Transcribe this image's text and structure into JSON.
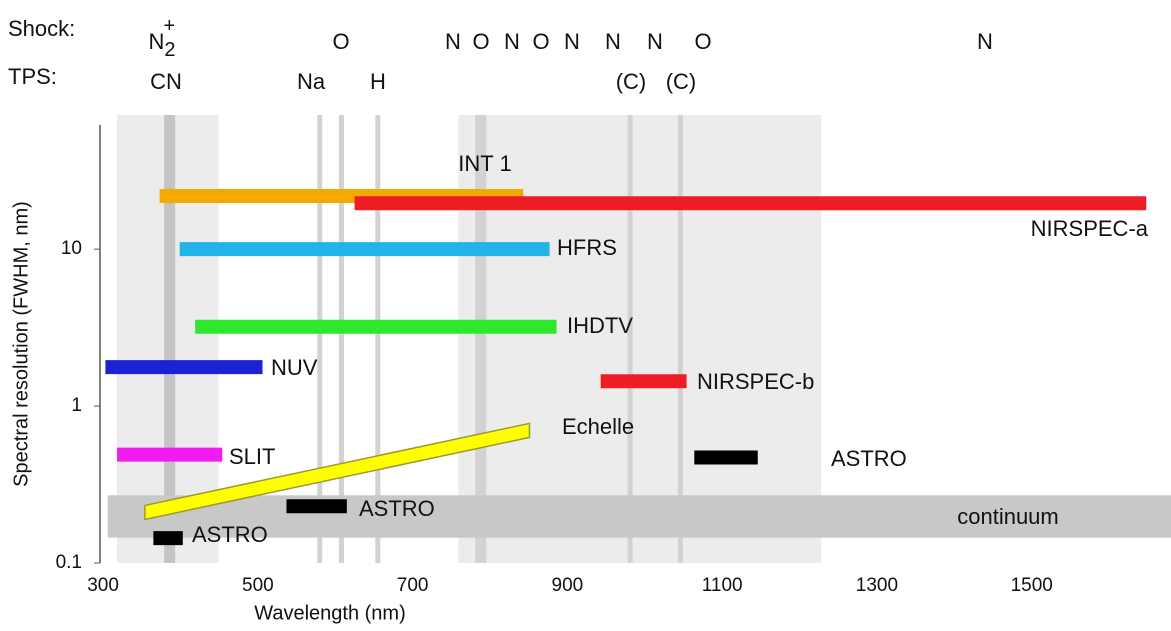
{
  "chart_data": {
    "type": "range",
    "x_label": "Wavelength (nm)",
    "y_label": "Spectral resolution (FWHM, nm)",
    "xlim": [
      296,
      1680
    ],
    "ylim": [
      0.1,
      60
    ],
    "y_log": true,
    "xticks": [
      300,
      500,
      700,
      900,
      1100,
      1300,
      1500
    ],
    "yticks": [
      0.1,
      1,
      10
    ],
    "row_titles": {
      "shock": "Shock:",
      "tps": "TPS:"
    },
    "shock_labels": [
      {
        "base": "N",
        "sub": "2",
        "sup": "+"
      },
      "O",
      "N",
      "O",
      "N",
      "O",
      "N",
      "N",
      "N",
      "O",
      "N"
    ],
    "tps_labels": [
      "CN",
      "Na",
      "H",
      "(C)",
      "(C)"
    ],
    "shaded_regions": [
      [
        318,
        449
      ],
      [
        759,
        1228
      ]
    ],
    "lines": [
      386,
      580,
      608,
      655,
      788,
      981,
      1046
    ],
    "continuum": {
      "name": "continuum",
      "color": "#c8c8c8",
      "x": [
        306,
        1680
      ],
      "values": [
        0.145,
        0.27
      ]
    },
    "series": [
      {
        "name": "INT 1",
        "color": "#f5a800",
        "x": [
          373,
          843
        ],
        "values": [
          21.8,
          21.8
        ]
      },
      {
        "name": "NIRSPEC-a",
        "color": "#ee1c24",
        "x": [
          625,
          1648
        ],
        "values": [
          19.6,
          19.6
        ]
      },
      {
        "name": "HFRS",
        "color": "#22b4e8",
        "x": [
          399,
          877
        ],
        "values": [
          10,
          10
        ]
      },
      {
        "name": "IHDTV",
        "color": "#2ee82e",
        "x": [
          419,
          886
        ],
        "values": [
          3.2,
          3.2
        ]
      },
      {
        "name": "NUV",
        "color": "#1a22d6",
        "x": [
          303,
          506
        ],
        "values": [
          1.77,
          1.77
        ]
      },
      {
        "name": "NIRSPEC-b",
        "color": "#ee1c24",
        "x": [
          943,
          1054
        ],
        "values": [
          1.44,
          1.44
        ]
      },
      {
        "name": "SLIT",
        "color": "#f01cf0",
        "x": [
          318,
          454
        ],
        "values": [
          0.49,
          0.49
        ]
      },
      {
        "name": "Echelle",
        "color": "#ffff00",
        "x": [
          354,
          851
        ],
        "values": [
          0.21,
          0.7
        ]
      },
      {
        "name": "ASTRO",
        "color": "#000000",
        "x": [
          1064,
          1146
        ],
        "values": [
          0.47,
          0.47
        ]
      },
      {
        "name": "ASTRO",
        "color": "#000000",
        "x": [
          537,
          615
        ],
        "values": [
          0.23,
          0.23
        ]
      },
      {
        "name": "ASTRO",
        "color": "#000000",
        "x": [
          365,
          403
        ],
        "values": [
          0.144,
          0.144
        ]
      }
    ]
  }
}
